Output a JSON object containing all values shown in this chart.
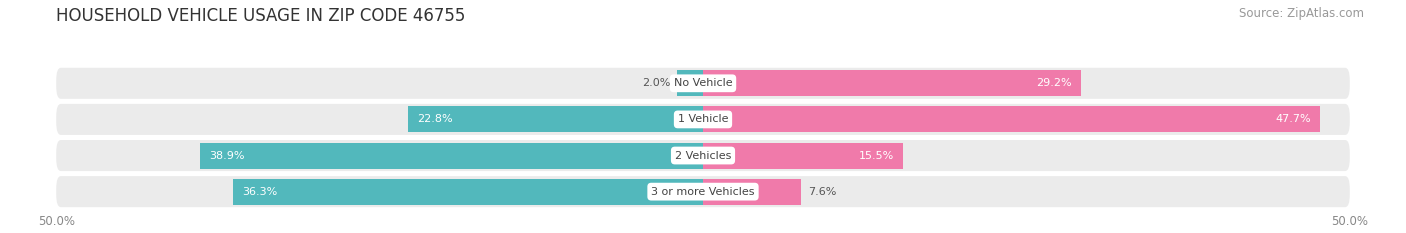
{
  "title": "HOUSEHOLD VEHICLE USAGE IN ZIP CODE 46755",
  "source": "Source: ZipAtlas.com",
  "categories": [
    "No Vehicle",
    "1 Vehicle",
    "2 Vehicles",
    "3 or more Vehicles"
  ],
  "owner_values": [
    2.0,
    22.8,
    38.9,
    36.3
  ],
  "renter_values": [
    29.2,
    47.7,
    15.5,
    7.6
  ],
  "owner_color": "#52b8bc",
  "renter_color": "#f07aaa",
  "xlim_left": -50,
  "xlim_right": 50,
  "background_color": "#ffffff",
  "row_bg_color": "#ebebeb",
  "title_fontsize": 12,
  "source_fontsize": 8.5,
  "label_fontsize": 8,
  "value_fontsize": 8,
  "bar_height": 0.72
}
